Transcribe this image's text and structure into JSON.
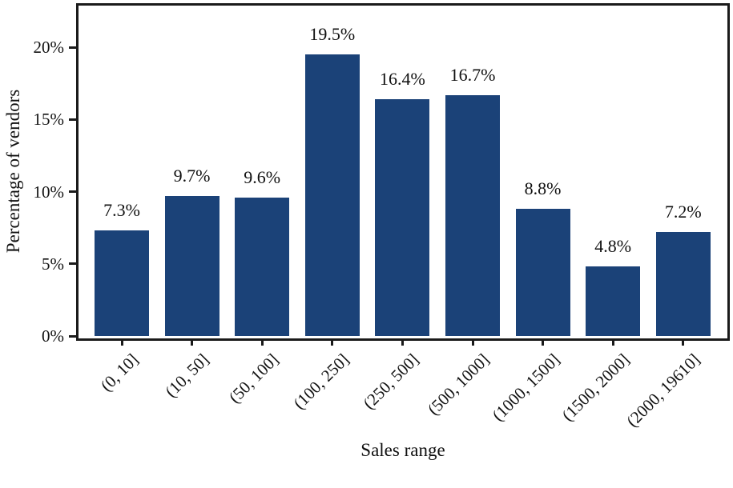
{
  "chart_data": {
    "type": "bar",
    "title": "",
    "categories": [
      "(0, 10]",
      "(10, 50]",
      "(50, 100]",
      "(100, 250]",
      "(250, 500]",
      "(500, 1000]",
      "(1000, 1500]",
      "(1500, 2000]",
      "(2000, 19610]"
    ],
    "values": [
      7.3,
      9.7,
      9.6,
      19.5,
      16.4,
      16.7,
      8.8,
      4.8,
      7.2
    ],
    "value_labels": [
      "7.3%",
      "9.7%",
      "9.6%",
      "19.5%",
      "16.4%",
      "16.7%",
      "8.8%",
      "4.8%",
      "7.2%"
    ],
    "xlabel": "Sales range",
    "ylabel": "Percentage of vendors",
    "ylim": [
      0,
      22.9
    ],
    "yticks": [
      0,
      5,
      10,
      15,
      20
    ],
    "ytick_labels": [
      "0%",
      "5%",
      "10%",
      "15%",
      "20%"
    ],
    "bar_color": "#1b4278",
    "axis_color": "#1a1a1a",
    "grid": false,
    "legend": null
  }
}
